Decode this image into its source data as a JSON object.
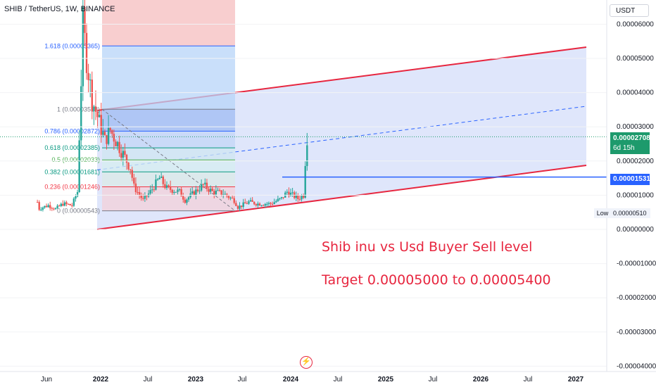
{
  "header": {
    "title": "SHIB / TetherUS, 1W, BINANCE",
    "unit_label": "USDT"
  },
  "price_badge": {
    "price": "0.00002708",
    "countdown": "6d 15h"
  },
  "level_badge": {
    "price": "0.00001531"
  },
  "low_marker": {
    "label": "Low",
    "value": "0.00000510"
  },
  "annotations": {
    "line1": "Shib inu vs Usd Buyer Sell level",
    "line2": "Target 0.00005000 to 0.00005400"
  },
  "colors": {
    "up": "#26a69a",
    "down": "#ef5350",
    "channel_line": "#e7263f",
    "channel_fill": "#c9d6f8",
    "level_line": "#2962ff",
    "badge_green": "#1d9a6c"
  },
  "chart_data": {
    "type": "candlestick",
    "symbol": "SHIB / TetherUS",
    "interval": "1W",
    "exchange": "BINANCE",
    "y_axis_ticks": [
      "0.00006000",
      "0.00005000",
      "0.00004000",
      "0.00003000",
      "0.00002000",
      "0.00001000",
      "0.00000000",
      "-0.00001000",
      "-0.00002000",
      "-0.00003000",
      "-0.00004000"
    ],
    "x_axis_ticks": [
      "Jun",
      "2022",
      "Jul",
      "2023",
      "Jul",
      "2024",
      "Jul",
      "2025",
      "Jul",
      "2026",
      "Jul",
      "2027"
    ],
    "last_price": 2.708e-05,
    "low": 5.1e-06,
    "fibonacci": [
      {
        "ratio": "1.618",
        "label": "1.618 (0.00005365)",
        "price": 5.365e-05
      },
      {
        "ratio": "1",
        "label": "1 (0.00003513)",
        "price": 3.513e-05
      },
      {
        "ratio": "0.786",
        "label": "0.786 (0.00002872)",
        "price": 2.872e-05
      },
      {
        "ratio": "0.618",
        "label": "0.618 (0.00002385)",
        "price": 2.385e-05
      },
      {
        "ratio": "0.5",
        "label": "0.5 (0.00002033)",
        "price": 2.033e-05
      },
      {
        "ratio": "0.382",
        "label": "0.382 (0.00001681)",
        "price": 1.681e-05
      },
      {
        "ratio": "0.236",
        "label": "0.236 (0.00001246)",
        "price": 1.246e-05
      },
      {
        "ratio": "0",
        "label": "0 (0.00000543)",
        "price": 5.43e-06
      }
    ],
    "horizontal_level": 1.531e-05,
    "price_path": [
      [
        "2021-05-03",
        8e-06
      ],
      [
        "2021-05-10",
        6e-06
      ],
      [
        "2021-05-24",
        6.5e-06
      ],
      [
        "2021-06-14",
        7e-06
      ],
      [
        "2021-07-12",
        6e-06
      ],
      [
        "2021-08-09",
        7.5e-06
      ],
      [
        "2021-09-13",
        7e-06
      ],
      [
        "2021-10-04",
        1.1e-05
      ],
      [
        "2021-10-25",
        6e-05
      ],
      [
        "2021-11-08",
        5e-05
      ],
      [
        "2021-11-29",
        3.8e-05
      ],
      [
        "2021-12-20",
        3.3e-05
      ],
      [
        "2022-01-17",
        2.6e-05
      ],
      [
        "2022-02-07",
        2.9e-05
      ],
      [
        "2022-03-14",
        2.4e-05
      ],
      [
        "2022-04-25",
        1.8e-05
      ],
      [
        "2022-05-09",
        1.25e-05
      ],
      [
        "2022-06-13",
        8.5e-06
      ],
      [
        "2022-07-11",
        1.1e-05
      ],
      [
        "2022-08-15",
        1.5e-05
      ],
      [
        "2022-09-12",
        1.2e-05
      ],
      [
        "2022-10-31",
        1.1e-05
      ],
      [
        "2022-11-21",
        8.5e-06
      ],
      [
        "2023-01-30",
        1.3e-05
      ],
      [
        "2023-03-06",
        1.1e-05
      ],
      [
        "2023-04-17",
        1.05e-05
      ],
      [
        "2023-05-29",
        8.5e-06
      ],
      [
        "2023-06-12",
        6.5e-06
      ],
      [
        "2023-07-24",
        8e-06
      ],
      [
        "2023-08-28",
        7.5e-06
      ],
      [
        "2023-10-16",
        7.5e-06
      ],
      [
        "2023-11-27",
        9e-06
      ],
      [
        "2023-12-18",
        1.1e-05
      ],
      [
        "2024-01-29",
        9e-06
      ],
      [
        "2024-02-19",
        1e-05
      ],
      [
        "2024-02-26",
        2e-05
      ],
      [
        "2024-03-04",
        2.7e-05
      ]
    ]
  }
}
